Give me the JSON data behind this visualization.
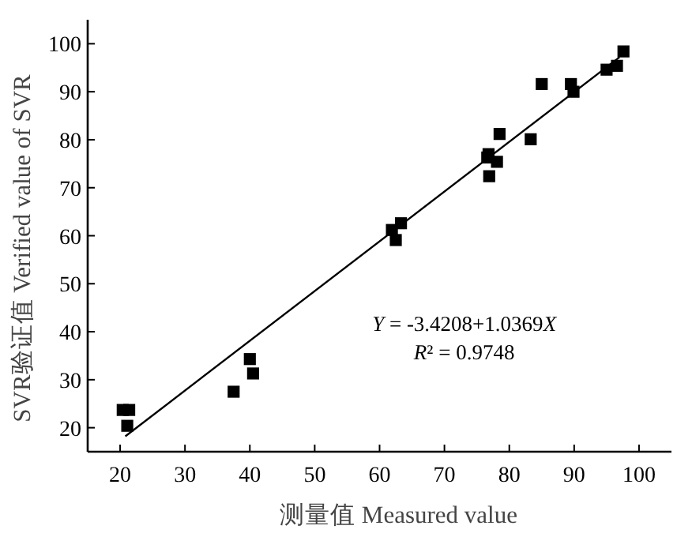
{
  "chart_data": {
    "type": "scatter",
    "xlabel": "测量值 Measured value",
    "ylabel": "SVR验证值 Verified value of SVR",
    "xlim": [
      15,
      105
    ],
    "ylim": [
      15,
      105
    ],
    "xticks": [
      20,
      30,
      40,
      50,
      60,
      70,
      80,
      90,
      100
    ],
    "yticks": [
      20,
      30,
      40,
      50,
      60,
      70,
      80,
      90,
      100
    ],
    "series": [
      {
        "color": "#000000",
        "marker": "square",
        "x": [
          20.4,
          21.4,
          21.1,
          37.5,
          40.0,
          40.5,
          61.9,
          62.5,
          63.3,
          76.8,
          76.6,
          78.1,
          76.9,
          78.5,
          83.3,
          85.0,
          89.5,
          89.9,
          95.0,
          96.6,
          97.6
        ],
        "values": [
          23.7,
          23.7,
          20.4,
          27.5,
          34.3,
          31.3,
          61.2,
          59.1,
          62.6,
          77.0,
          76.3,
          75.4,
          72.4,
          81.2,
          80.1,
          91.6,
          91.6,
          90.0,
          94.6,
          95.4,
          98.4
        ]
      },
      {
        "type": "line",
        "color": "#000000",
        "x": [
          20.8,
          97.0
        ],
        "values": [
          18.2,
          97.2
        ]
      }
    ],
    "annotations": [
      "Y = -3.4208+1.0369X",
      "R² = 0.9748"
    ]
  }
}
